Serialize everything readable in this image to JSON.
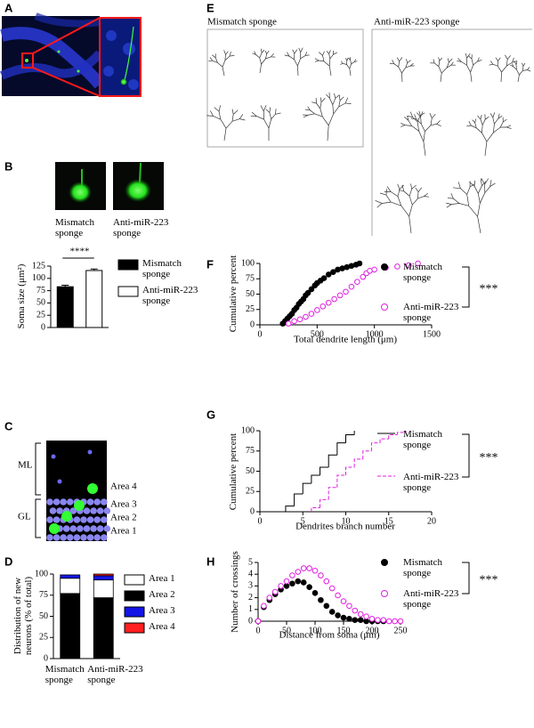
{
  "panel_labels": [
    "A",
    "B",
    "C",
    "D",
    "E",
    "F",
    "G",
    "H"
  ],
  "panel_b_images": {
    "captions": [
      "Mismatch sponge",
      "Anti-miR-223 sponge"
    ]
  },
  "panel_c": {
    "layers": [
      "ML",
      "GL"
    ],
    "areas": [
      "Area 4",
      "Area 3",
      "Area 2",
      "Area 1"
    ]
  },
  "panel_e": {
    "groups": [
      "Mismatch sponge",
      "Anti-miR-223 sponge"
    ]
  },
  "chart_data": [
    {
      "type": "bar",
      "ylabel": "Soma size (μm²)",
      "categories": [
        null,
        null
      ],
      "series": [
        {
          "name": "Mismatch sponge",
          "color": "#000000",
          "values": [
            83,
            null
          ],
          "errors": [
            3,
            null
          ]
        },
        {
          "name": "Anti-miR-223 sponge",
          "color": "#ffffff",
          "values": [
            null,
            116
          ],
          "errors": [
            null,
            3
          ]
        }
      ],
      "ylim": [
        0,
        125
      ],
      "yticks": [
        0,
        25,
        50,
        75,
        100,
        125
      ],
      "annotation": "****",
      "legend": "right"
    },
    {
      "type": "stacked_bar",
      "ylabel": "Distribution of new neurons (% of total)",
      "categories": [
        "Mismatch sponge",
        "Anti-miR-223 sponge"
      ],
      "series": [
        {
          "name": "Area 1",
          "color": "#ffffff",
          "values": [
            18,
            21
          ]
        },
        {
          "name": "Area 2",
          "color": "#000000",
          "values": [
            77,
            72
          ]
        },
        {
          "name": "Area 3",
          "color": "#1414e6",
          "values": [
            4,
            5
          ]
        },
        {
          "name": "Area 4",
          "color": "#ff2020",
          "values": [
            0,
            2
          ]
        }
      ],
      "ylim": [
        0,
        100
      ],
      "yticks": [
        0,
        25,
        50,
        75,
        100
      ],
      "legend": "right"
    },
    {
      "type": "scatter",
      "ylabel": "Cumulative percent",
      "xlabel": "Total dendrite length (μm)",
      "series": [
        {
          "name": "Mismatch sponge",
          "color": "#000000",
          "marker": "circle",
          "x": [
            200,
            220,
            240,
            260,
            280,
            300,
            320,
            340,
            360,
            380,
            400,
            420,
            450,
            480,
            500,
            530,
            560,
            600,
            640,
            680,
            720,
            760,
            800,
            840,
            870
          ],
          "values": [
            2,
            6,
            10,
            14,
            18,
            24,
            28,
            34,
            38,
            42,
            48,
            52,
            58,
            64,
            68,
            72,
            76,
            82,
            86,
            90,
            92,
            94,
            96,
            98,
            100
          ]
        },
        {
          "name": "Anti-miR-223 sponge",
          "color": "#e020e0",
          "marker": "open-circle",
          "x": [
            250,
            300,
            350,
            400,
            450,
            500,
            550,
            600,
            650,
            700,
            750,
            800,
            850,
            900,
            930,
            960,
            1000,
            1100,
            1200,
            1300,
            1380
          ],
          "values": [
            2,
            6,
            9,
            13,
            18,
            24,
            30,
            36,
            42,
            48,
            54,
            62,
            70,
            78,
            84,
            88,
            90,
            93,
            95,
            97,
            100
          ]
        }
      ],
      "xlim": [
        0,
        1500
      ],
      "xticks": [
        0,
        500,
        1000,
        1500
      ],
      "ylim": [
        0,
        100
      ],
      "yticks": [
        0,
        25,
        50,
        75,
        100
      ],
      "annotation": "***",
      "legend": "right"
    },
    {
      "type": "step",
      "ylabel": "Cumulative percent",
      "xlabel": "Dendrites branch number",
      "series": [
        {
          "name": "Mismatch sponge",
          "color": "#000000",
          "linestyle": "solid",
          "x": [
            3,
            4,
            5,
            6,
            7,
            8,
            9,
            10,
            11
          ],
          "values": [
            7,
            22,
            35,
            45,
            55,
            70,
            85,
            95,
            100
          ]
        },
        {
          "name": "Anti-miR-223 sponge",
          "color": "#e020e0",
          "linestyle": "dashed",
          "x": [
            6,
            7,
            8,
            9,
            10,
            11,
            12,
            13,
            14,
            15,
            16,
            17
          ],
          "values": [
            5,
            15,
            30,
            45,
            55,
            65,
            75,
            85,
            90,
            95,
            98,
            100
          ]
        }
      ],
      "xlim": [
        0,
        20
      ],
      "xticks": [
        0,
        5,
        10,
        15,
        20
      ],
      "ylim": [
        0,
        100
      ],
      "yticks": [
        0,
        25,
        50,
        75,
        100
      ],
      "annotation": "***",
      "legend": "right"
    },
    {
      "type": "scatter",
      "ylabel": "Number of crossings",
      "xlabel": "Distance from soma (μm)",
      "series": [
        {
          "name": "Mismatch sponge",
          "color": "#000000",
          "marker": "circle",
          "x": [
            0,
            10,
            20,
            30,
            40,
            50,
            60,
            70,
            80,
            90,
            100,
            110,
            120,
            130,
            140,
            150,
            160,
            170,
            180,
            190,
            200,
            210,
            220
          ],
          "values": [
            0,
            1.2,
            1.8,
            2.3,
            2.7,
            3,
            3.2,
            3.4,
            3.3,
            2.9,
            2.4,
            1.8,
            1.3,
            0.8,
            0.5,
            0.3,
            0.2,
            0.1,
            0.1,
            0,
            0,
            0,
            0
          ],
          "errors": [
            0,
            0.1,
            0.1,
            0.15,
            0.15,
            0.2,
            0.2,
            0.25,
            0.25,
            0.25,
            0.25,
            0.2,
            0.2,
            0.15,
            0.1,
            0.1,
            0.05,
            0.05,
            0.05,
            0,
            0,
            0,
            0
          ]
        },
        {
          "name": "Anti-miR-223 sponge",
          "color": "#e020e0",
          "marker": "open-circle",
          "x": [
            0,
            10,
            20,
            30,
            40,
            50,
            60,
            70,
            80,
            90,
            100,
            110,
            120,
            130,
            140,
            150,
            160,
            170,
            180,
            190,
            200,
            210,
            220,
            230,
            240,
            250
          ],
          "values": [
            0,
            1.3,
            2,
            2.5,
            3,
            3.4,
            3.9,
            4.2,
            4.5,
            4.5,
            4.3,
            3.9,
            3.4,
            2.8,
            2.2,
            1.7,
            1.3,
            0.9,
            0.6,
            0.4,
            0.2,
            0.1,
            0.1,
            0,
            0,
            0
          ],
          "errors": [
            0,
            0.1,
            0.1,
            0.15,
            0.15,
            0.2,
            0.2,
            0.25,
            0.25,
            0.25,
            0.25,
            0.25,
            0.25,
            0.2,
            0.2,
            0.15,
            0.15,
            0.1,
            0.1,
            0.05,
            0.05,
            0.05,
            0.05,
            0,
            0,
            0
          ]
        }
      ],
      "xlim": [
        0,
        250
      ],
      "xticks": [
        0,
        50,
        100,
        150,
        200,
        250
      ],
      "ylim": [
        0,
        5
      ],
      "yticks": [
        0,
        1,
        2,
        3,
        4,
        5
      ],
      "annotation": "***",
      "legend": "right"
    }
  ]
}
